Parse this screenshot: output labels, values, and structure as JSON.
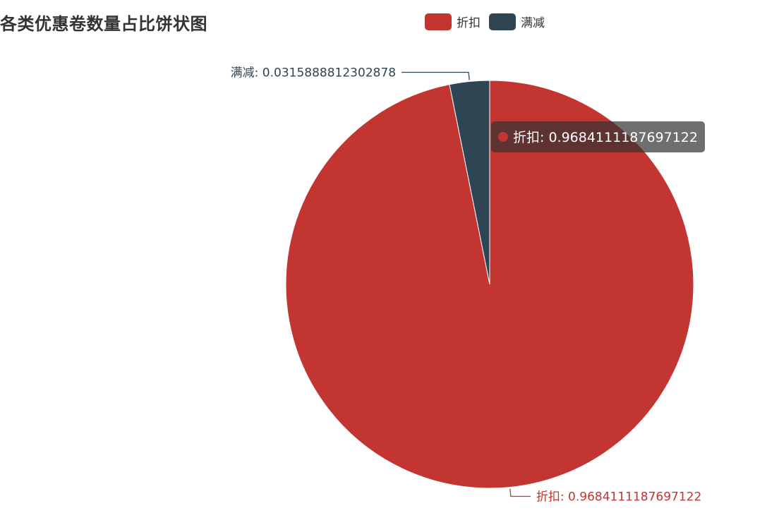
{
  "chart_data": {
    "type": "pie",
    "title": "各类优惠卷数量占比饼状图",
    "legend": {
      "position": "top-center",
      "items": [
        "折扣",
        "满减"
      ]
    },
    "series": [
      {
        "name": "折扣",
        "value": 0.9684111187697122,
        "color": "#c23531",
        "label": "折扣: 0.9684111187697122"
      },
      {
        "name": "满减",
        "value": 0.0315888812302878,
        "color": "#2f4554",
        "label": "满减: 0.0315888812302878"
      }
    ],
    "tooltip": {
      "visible": true,
      "series_index": 0,
      "text": "折扣: 0.9684111187697122"
    }
  }
}
